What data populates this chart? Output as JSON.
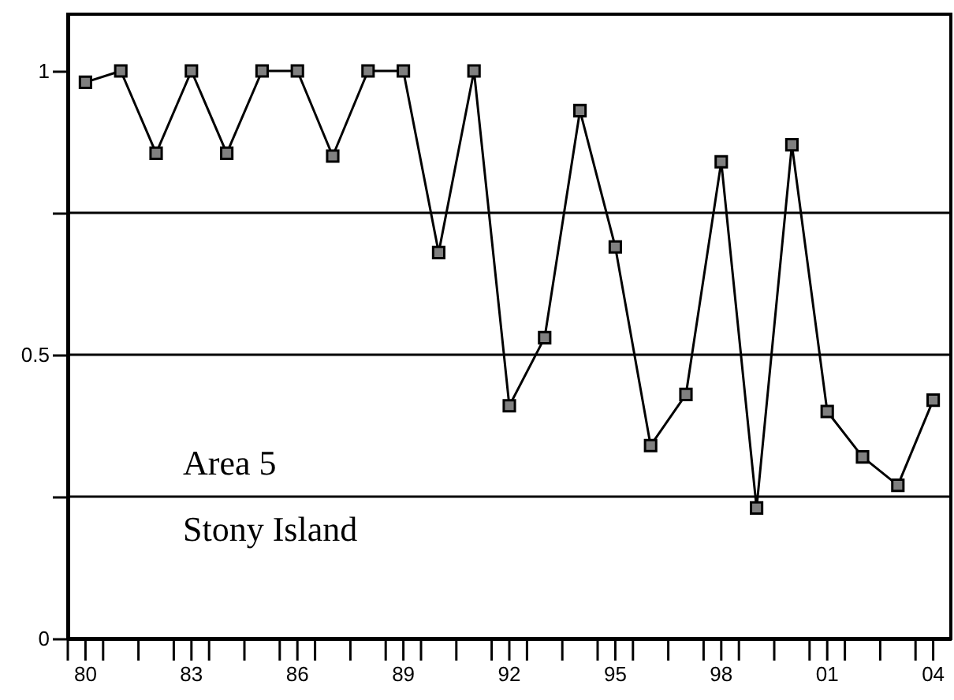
{
  "chart_data": {
    "type": "line",
    "x": [
      1980,
      1981,
      1982,
      1983,
      1984,
      1985,
      1986,
      1987,
      1988,
      1989,
      1990,
      1991,
      1992,
      1993,
      1994,
      1995,
      1996,
      1997,
      1998,
      1999,
      2000,
      2001,
      2002,
      2003,
      2004
    ],
    "series": [
      {
        "color": "#000000",
        "values": [
          0.98,
          1.0,
          0.855,
          1.0,
          0.855,
          1.0,
          1.0,
          0.85,
          1.0,
          1.0,
          0.68,
          1.0,
          0.41,
          0.53,
          0.93,
          0.69,
          0.34,
          0.43,
          0.84,
          0.23,
          0.87,
          0.4,
          0.32,
          0.27,
          0.42
        ]
      }
    ],
    "xlim": [
      1979.5,
      2004.5
    ],
    "xticks": [
      {
        "value": 1980,
        "label": "80"
      },
      {
        "value": 1983,
        "label": "83"
      },
      {
        "value": 1986,
        "label": "86"
      },
      {
        "value": 1989,
        "label": "89"
      },
      {
        "value": 1992,
        "label": "92"
      },
      {
        "value": 1995,
        "label": "95"
      },
      {
        "value": 1998,
        "label": "98"
      },
      {
        "value": 2001,
        "label": "01"
      },
      {
        "value": 2004,
        "label": "04"
      },
      {
        "value": 1979.5,
        "label": null
      },
      {
        "value": 1980.5,
        "label": null
      },
      {
        "value": 1981.5,
        "label": null
      },
      {
        "value": 1982.5,
        "label": null
      },
      {
        "value": 1983.5,
        "label": null
      },
      {
        "value": 1984.5,
        "label": null
      },
      {
        "value": 1985.5,
        "label": null
      },
      {
        "value": 1986.5,
        "label": null
      },
      {
        "value": 1987.5,
        "label": null
      },
      {
        "value": 1988.5,
        "label": null
      },
      {
        "value": 1989.5,
        "label": null
      },
      {
        "value": 1990.5,
        "label": null
      },
      {
        "value": 1991.5,
        "label": null
      },
      {
        "value": 1992.5,
        "label": null
      },
      {
        "value": 1993.5,
        "label": null
      },
      {
        "value": 1994.5,
        "label": null
      },
      {
        "value": 1995.5,
        "label": null
      },
      {
        "value": 1996.5,
        "label": null
      },
      {
        "value": 1997.5,
        "label": null
      },
      {
        "value": 1998.5,
        "label": null
      },
      {
        "value": 1999.5,
        "label": null
      },
      {
        "value": 2000.5,
        "label": null
      },
      {
        "value": 2001.5,
        "label": null
      },
      {
        "value": 2002.5,
        "label": null
      },
      {
        "value": 2003.5,
        "label": null
      }
    ],
    "ylim": [
      0,
      1.1
    ],
    "yticks": [
      0,
      {
        "value": 0.25,
        "label": null
      },
      0.5,
      {
        "value": 0.75,
        "label": null
      },
      1
    ],
    "ref_lines": [
      {
        "axis": "y",
        "value": 0.25
      },
      {
        "axis": "y",
        "value": 0.5
      },
      {
        "axis": "y",
        "value": 0.75
      }
    ],
    "annotations": [
      "Area  5",
      "Stony Island"
    ],
    "marker": "square",
    "grid": false
  }
}
